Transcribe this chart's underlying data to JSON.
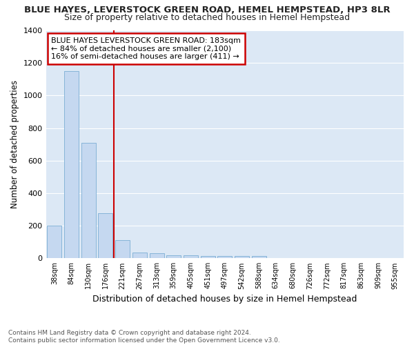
{
  "title1": "BLUE HAYES, LEVERSTOCK GREEN ROAD, HEMEL HEMPSTEAD, HP3 8LR",
  "title2": "Size of property relative to detached houses in Hemel Hempstead",
  "xlabel": "Distribution of detached houses by size in Hemel Hempstead",
  "ylabel": "Number of detached properties",
  "footer": "Contains HM Land Registry data © Crown copyright and database right 2024.\nContains public sector information licensed under the Open Government Licence v3.0.",
  "bins": [
    "38sqm",
    "84sqm",
    "130sqm",
    "176sqm",
    "221sqm",
    "267sqm",
    "313sqm",
    "359sqm",
    "405sqm",
    "451sqm",
    "497sqm",
    "542sqm",
    "588sqm",
    "634sqm",
    "680sqm",
    "726sqm",
    "772sqm",
    "817sqm",
    "863sqm",
    "909sqm",
    "955sqm"
  ],
  "values": [
    200,
    1150,
    710,
    275,
    110,
    35,
    30,
    20,
    18,
    15,
    15,
    15,
    15,
    0,
    0,
    0,
    0,
    0,
    0,
    0,
    0
  ],
  "bar_color": "#c5d8f0",
  "bar_edge_color": "#7aadd4",
  "red_line_x": 3.5,
  "red_line_label": "BLUE HAYES LEVERSTOCK GREEN ROAD: 183sqm",
  "annotation_line1": "← 84% of detached houses are smaller (2,100)",
  "annotation_line2": "16% of semi-detached houses are larger (411) →",
  "ylim": [
    0,
    1400
  ],
  "yticks": [
    0,
    200,
    400,
    600,
    800,
    1000,
    1200,
    1400
  ],
  "bg_color": "#ffffff",
  "plot_bg_color": "#dce8f5",
  "grid_color": "#ffffff",
  "title1_fontsize": 9.5,
  "title2_fontsize": 9,
  "annotation_box_color": "#ffffff",
  "annotation_box_edge": "#cc0000",
  "footer_color": "#555555"
}
